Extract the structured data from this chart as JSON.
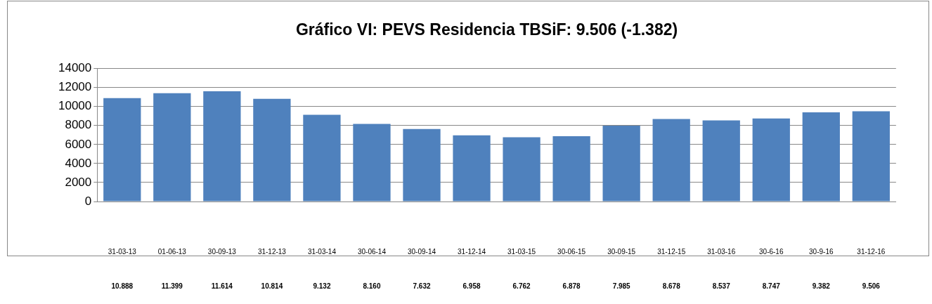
{
  "chart_data": {
    "type": "bar",
    "title": "Gráfico VI: PEVS Residencia TBSiF: 9.506 (-1.382)",
    "categories": [
      "31-03-13",
      "01-06-13",
      "30-09-13",
      "31-12-13",
      "31-03-14",
      "30-06-14",
      "30-09-14",
      "31-12-14",
      "31-03-15",
      "30-06-15",
      "30-09-15",
      "31-12-15",
      "31-03-16",
      "30-6-16",
      "30-9-16",
      "31-12-16"
    ],
    "values": [
      10888,
      11399,
      11614,
      10814,
      9132,
      8160,
      7632,
      6958,
      6762,
      6878,
      7985,
      8678,
      8537,
      8747,
      9382,
      9506
    ],
    "value_labels": [
      "10.888",
      "11.399",
      "11.614",
      "10.814",
      "9.132",
      "8.160",
      "7.632",
      "6.958",
      "6.762",
      "6.878",
      "7.985",
      "8.678",
      "8.537",
      "8.747",
      "9.382",
      "9.506"
    ],
    "color": "#4f81bd",
    "ylim": [
      0,
      14000
    ],
    "yticks": [
      0,
      2000,
      4000,
      6000,
      8000,
      10000,
      12000,
      14000
    ],
    "grid": "y",
    "legend": false
  }
}
